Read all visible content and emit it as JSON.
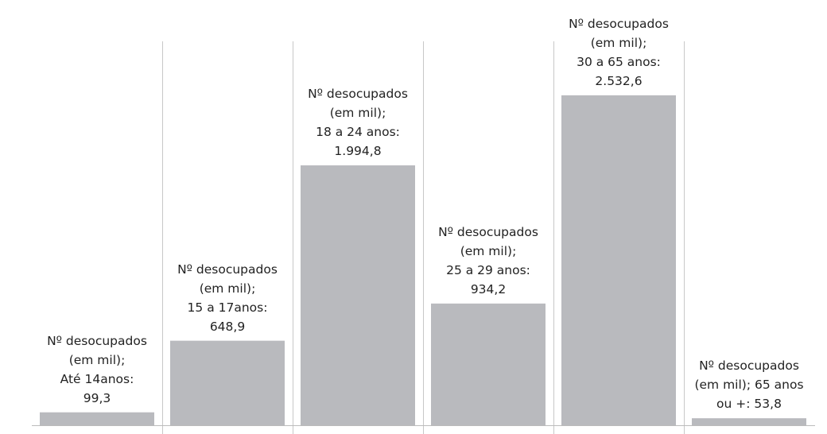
{
  "chart_data": {
    "type": "bar",
    "series_name": "Nº desocupados (em mil)",
    "values": [
      99.3,
      648.9,
      1994.8,
      934.2,
      2532.6,
      53.8
    ],
    "value_labels": [
      "Nº desocupados\n(em mil);\nAté 14anos:\n99,3",
      "Nº desocupados\n(em mil);\n15 a 17anos:\n648,9",
      "Nº desocupados\n(em mil);\n18 a 24 anos:\n1.994,8",
      "Nº desocupados\n(em mil);\n25 a 29 anos:\n934,2",
      "Nº desocupados\n(em mil);\n30 a 65 anos:\n2.532,6",
      "Nº desocupados\n(em mil); 65 anos\nou +: 53,8"
    ],
    "color": "#b9babe",
    "ylim": [
      0,
      3264
    ]
  }
}
